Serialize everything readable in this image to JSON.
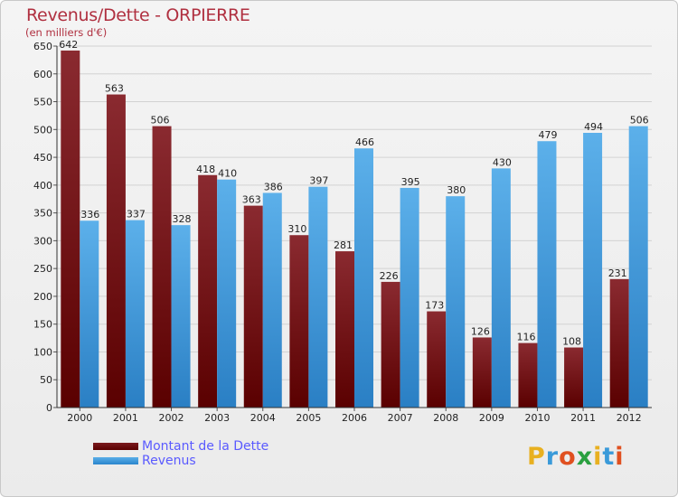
{
  "header": {
    "title": "Revenus/Dette - ORPIERRE",
    "subtitle": "(en milliers d'€)"
  },
  "legend": {
    "dette_label": "Montant de la Dette",
    "revenus_label": "Revenus"
  },
  "logo": {
    "letters": [
      "P",
      "r",
      "o",
      "x",
      "i",
      "t",
      "i"
    ],
    "colors": [
      "#e8b020",
      "#3a9ad9",
      "#e05020",
      "#2aa040",
      "#e8b020",
      "#3a9ad9",
      "#e05020"
    ]
  },
  "colors": {
    "dette": "#7a1a1e",
    "dette_dark": "#5a0000",
    "revenus": "#5aaee8",
    "revenus_dark": "#2a86cc",
    "accent": "#b03040"
  },
  "chart_data": {
    "type": "bar",
    "title": "Revenus/Dette - ORPIERRE",
    "subtitle": "(en milliers d'€)",
    "xlabel": "",
    "ylabel": "",
    "ylim": [
      0,
      650
    ],
    "yticks": [
      0,
      50,
      100,
      150,
      200,
      250,
      300,
      350,
      400,
      450,
      500,
      550,
      600,
      650
    ],
    "grid": true,
    "legend_position": "bottom-left",
    "categories": [
      "2000",
      "2001",
      "2002",
      "2003",
      "2004",
      "2005",
      "2006",
      "2007",
      "2008",
      "2009",
      "2010",
      "2011",
      "2012"
    ],
    "series": [
      {
        "name": "Montant de la Dette",
        "values": [
          642,
          563,
          506,
          418,
          363,
          310,
          281,
          226,
          173,
          126,
          116,
          108,
          231
        ]
      },
      {
        "name": "Revenus",
        "values": [
          336,
          337,
          328,
          410,
          386,
          397,
          466,
          395,
          380,
          430,
          479,
          494,
          506
        ]
      }
    ]
  }
}
